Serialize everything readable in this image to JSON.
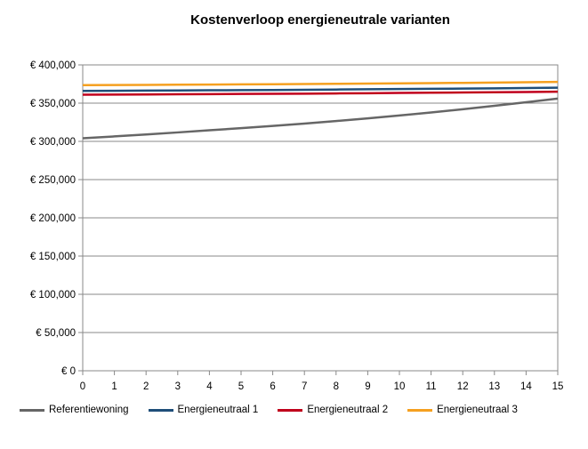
{
  "chart_data": {
    "type": "line",
    "title": "Kostenverloop energieneutrale varianten",
    "xlabel": "",
    "ylabel": "",
    "x": [
      0,
      1,
      2,
      3,
      4,
      5,
      6,
      7,
      8,
      9,
      10,
      11,
      12,
      13,
      14,
      15
    ],
    "xlim": [
      0,
      15
    ],
    "ylim": [
      0,
      400000
    ],
    "y_ticks": [
      0,
      50000,
      100000,
      150000,
      200000,
      250000,
      300000,
      350000,
      400000
    ],
    "y_tick_labels": [
      "€ 0",
      "€ 50,000",
      "€ 100,000",
      "€ 150,000",
      "€ 200,000",
      "€ 250,000",
      "€ 300,000",
      "€ 350,000",
      "€ 400,000"
    ],
    "grid": "horizontal",
    "legend_position": "bottom",
    "series": [
      {
        "name": "Referentiewoning",
        "color": "#666666",
        "values": [
          304000,
          306500,
          309000,
          311700,
          314500,
          317300,
          320200,
          323300,
          326600,
          330100,
          333800,
          337800,
          342000,
          346500,
          351200,
          356000
        ]
      },
      {
        "name": "Energieneutraal 1",
        "color": "#1f4e79",
        "values": [
          366000,
          366200,
          366400,
          366600,
          366800,
          367000,
          367200,
          367500,
          367800,
          368100,
          368400,
          368700,
          369000,
          369400,
          369800,
          370200
        ]
      },
      {
        "name": "Energieneutraal 2",
        "color": "#c0001c",
        "values": [
          361000,
          361200,
          361400,
          361600,
          361800,
          362000,
          362200,
          362400,
          362700,
          363000,
          363300,
          363600,
          363900,
          364200,
          364600,
          365000
        ]
      },
      {
        "name": "Energieneutraal 3",
        "color": "#f5a020",
        "values": [
          373500,
          373700,
          373900,
          374100,
          374300,
          374500,
          374700,
          375000,
          375300,
          375600,
          375900,
          376200,
          376500,
          376900,
          377300,
          377700
        ]
      }
    ]
  }
}
